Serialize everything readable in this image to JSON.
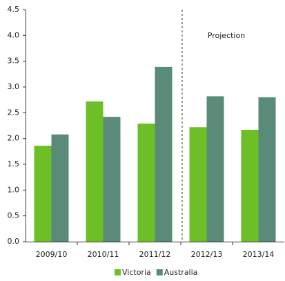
{
  "chart_data": {
    "type": "bar",
    "categories": [
      "2009/10",
      "2010/11",
      "2011/12",
      "2012/13",
      "2013/14"
    ],
    "series": [
      {
        "name": "Victoria",
        "color": "#6cbf26",
        "values": [
          1.86,
          2.72,
          2.29,
          2.22,
          2.17
        ]
      },
      {
        "name": "Australia",
        "color": "#5a8a78",
        "values": [
          2.08,
          2.42,
          3.39,
          2.82,
          2.8
        ]
      }
    ],
    "annotation": "Projection",
    "ylim": [
      0,
      4.5
    ],
    "yticks": [
      {
        "value": 0,
        "label": "0.0"
      },
      0.5,
      {
        "value": 1,
        "label": "1.0"
      },
      1.5,
      {
        "value": 2,
        "label": "2.0"
      },
      2.5,
      {
        "value": 3,
        "label": "3.0"
      },
      3.5,
      {
        "value": 4,
        "label": "4.0"
      },
      4.5
    ],
    "grid": false,
    "legend": "bottom"
  }
}
